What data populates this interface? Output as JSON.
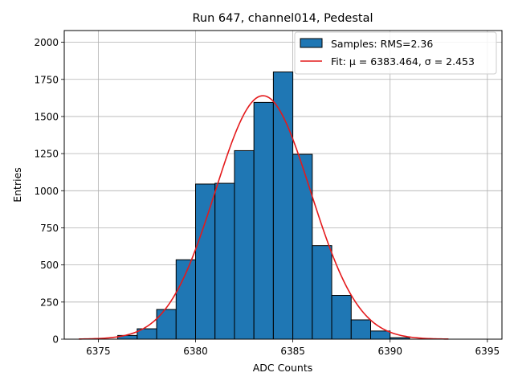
{
  "chart_data": {
    "type": "bar",
    "title": "Run 647, channel014, Pedestal",
    "xlabel": "ADC Counts",
    "ylabel": "Entries",
    "xlim": [
      6373.25,
      6395.75
    ],
    "ylim": [
      0,
      2079
    ],
    "xticks": [
      6375,
      6380,
      6385,
      6390,
      6395
    ],
    "yticks": [
      0,
      250,
      500,
      750,
      1000,
      1250,
      1500,
      1750,
      2000
    ],
    "grid": true,
    "bin_width": 1,
    "bins": [
      {
        "left": 6376,
        "value": 25
      },
      {
        "left": 6377,
        "value": 70
      },
      {
        "left": 6378,
        "value": 200
      },
      {
        "left": 6379,
        "value": 535
      },
      {
        "left": 6380,
        "value": 1045
      },
      {
        "left": 6381,
        "value": 1050
      },
      {
        "left": 6382,
        "value": 1270
      },
      {
        "left": 6383,
        "value": 1595
      },
      {
        "left": 6384,
        "value": 1800
      },
      {
        "left": 6385,
        "value": 1245
      },
      {
        "left": 6386,
        "value": 630
      },
      {
        "left": 6387,
        "value": 295
      },
      {
        "left": 6388,
        "value": 130
      },
      {
        "left": 6389,
        "value": 55
      },
      {
        "left": 6390,
        "value": 10
      }
    ],
    "fit": {
      "mu": 6383.464,
      "sigma": 2.453,
      "amplitude": 1640,
      "x_range": [
        6374,
        6393
      ]
    },
    "legend": {
      "position": "top-right",
      "entries": [
        "Samples: RMS=2.36",
        "Fit: μ = 6383.464, σ = 2.453"
      ]
    },
    "colors": {
      "bar_fill": "#1f77b4",
      "bar_edge": "#000000",
      "fit_line": "#e41a1c",
      "grid": "#b0b0b0"
    }
  }
}
